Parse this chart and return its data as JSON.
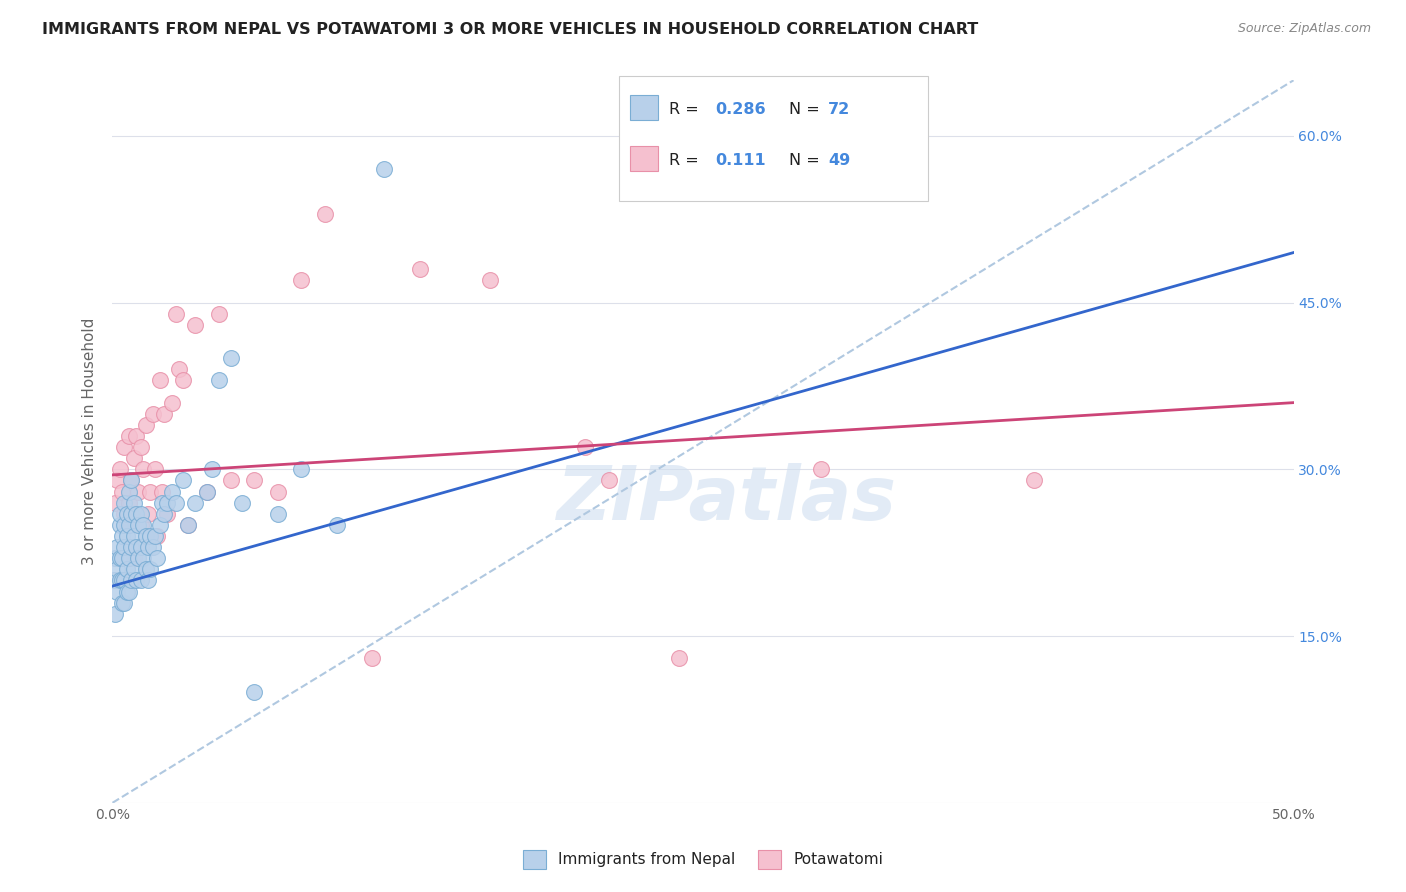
{
  "title": "IMMIGRANTS FROM NEPAL VS POTAWATOMI 3 OR MORE VEHICLES IN HOUSEHOLD CORRELATION CHART",
  "source": "Source: ZipAtlas.com",
  "ylabel": "3 or more Vehicles in Household",
  "xlim": [
    0.0,
    0.5
  ],
  "ylim": [
    0.0,
    0.65
  ],
  "xticks": [
    0.0,
    0.1,
    0.2,
    0.3,
    0.4,
    0.5
  ],
  "xtick_labels": [
    "0.0%",
    "",
    "",
    "",
    "",
    "50.0%"
  ],
  "yticks": [
    0.0,
    0.15,
    0.3,
    0.45,
    0.6
  ],
  "ytick_labels_left": [
    "",
    "",
    "",
    "",
    ""
  ],
  "ytick_labels_right": [
    "",
    "15.0%",
    "30.0%",
    "45.0%",
    "60.0%"
  ],
  "nepal_color": "#b8d0ea",
  "nepal_edge_color": "#7aadd4",
  "potawatomi_color": "#f5c0cf",
  "potawatomi_edge_color": "#e890a8",
  "trendline1_color": "#3366cc",
  "trendline2_color": "#cc4477",
  "dashed_line_color": "#b0c8e0",
  "watermark_color": "#d0dff0",
  "nepal_scatter_x": [
    0.0005,
    0.001,
    0.001,
    0.002,
    0.002,
    0.002,
    0.003,
    0.003,
    0.003,
    0.003,
    0.004,
    0.004,
    0.004,
    0.004,
    0.005,
    0.005,
    0.005,
    0.005,
    0.005,
    0.006,
    0.006,
    0.006,
    0.006,
    0.007,
    0.007,
    0.007,
    0.007,
    0.008,
    0.008,
    0.008,
    0.008,
    0.009,
    0.009,
    0.009,
    0.01,
    0.01,
    0.01,
    0.011,
    0.011,
    0.012,
    0.012,
    0.012,
    0.013,
    0.013,
    0.014,
    0.014,
    0.015,
    0.015,
    0.016,
    0.016,
    0.017,
    0.018,
    0.019,
    0.02,
    0.021,
    0.022,
    0.023,
    0.025,
    0.027,
    0.03,
    0.032,
    0.035,
    0.04,
    0.042,
    0.045,
    0.05,
    0.055,
    0.06,
    0.07,
    0.08,
    0.095,
    0.115
  ],
  "nepal_scatter_y": [
    0.2,
    0.17,
    0.22,
    0.19,
    0.23,
    0.21,
    0.2,
    0.22,
    0.25,
    0.26,
    0.18,
    0.2,
    0.22,
    0.24,
    0.18,
    0.2,
    0.23,
    0.25,
    0.27,
    0.19,
    0.21,
    0.24,
    0.26,
    0.19,
    0.22,
    0.25,
    0.28,
    0.2,
    0.23,
    0.26,
    0.29,
    0.21,
    0.24,
    0.27,
    0.2,
    0.23,
    0.26,
    0.22,
    0.25,
    0.2,
    0.23,
    0.26,
    0.22,
    0.25,
    0.21,
    0.24,
    0.2,
    0.23,
    0.21,
    0.24,
    0.23,
    0.24,
    0.22,
    0.25,
    0.27,
    0.26,
    0.27,
    0.28,
    0.27,
    0.29,
    0.25,
    0.27,
    0.28,
    0.3,
    0.38,
    0.4,
    0.27,
    0.1,
    0.26,
    0.3,
    0.25,
    0.57
  ],
  "potawatomi_scatter_x": [
    0.001,
    0.002,
    0.003,
    0.004,
    0.005,
    0.005,
    0.006,
    0.007,
    0.007,
    0.008,
    0.009,
    0.009,
    0.01,
    0.01,
    0.011,
    0.012,
    0.012,
    0.013,
    0.014,
    0.015,
    0.016,
    0.017,
    0.018,
    0.019,
    0.02,
    0.021,
    0.022,
    0.023,
    0.025,
    0.027,
    0.028,
    0.03,
    0.032,
    0.035,
    0.04,
    0.045,
    0.05,
    0.06,
    0.07,
    0.08,
    0.09,
    0.11,
    0.13,
    0.16,
    0.2,
    0.21,
    0.24,
    0.3,
    0.39
  ],
  "potawatomi_scatter_y": [
    0.27,
    0.29,
    0.3,
    0.28,
    0.26,
    0.32,
    0.25,
    0.27,
    0.33,
    0.29,
    0.22,
    0.31,
    0.26,
    0.33,
    0.28,
    0.25,
    0.32,
    0.3,
    0.34,
    0.26,
    0.28,
    0.35,
    0.3,
    0.24,
    0.38,
    0.28,
    0.35,
    0.26,
    0.36,
    0.44,
    0.39,
    0.38,
    0.25,
    0.43,
    0.28,
    0.44,
    0.29,
    0.29,
    0.28,
    0.47,
    0.53,
    0.13,
    0.48,
    0.47,
    0.32,
    0.29,
    0.13,
    0.3,
    0.29
  ],
  "background_color": "#ffffff",
  "grid_color": "#dde0ea",
  "title_color": "#222222",
  "axis_color": "#666666",
  "right_axis_color": "#4488dd",
  "legend_text_color": "#222222",
  "legend_value_color": "#4488dd",
  "trendline1_intercept": 0.195,
  "trendline1_slope": 0.6,
  "trendline2_intercept": 0.295,
  "trendline2_slope": 0.13
}
